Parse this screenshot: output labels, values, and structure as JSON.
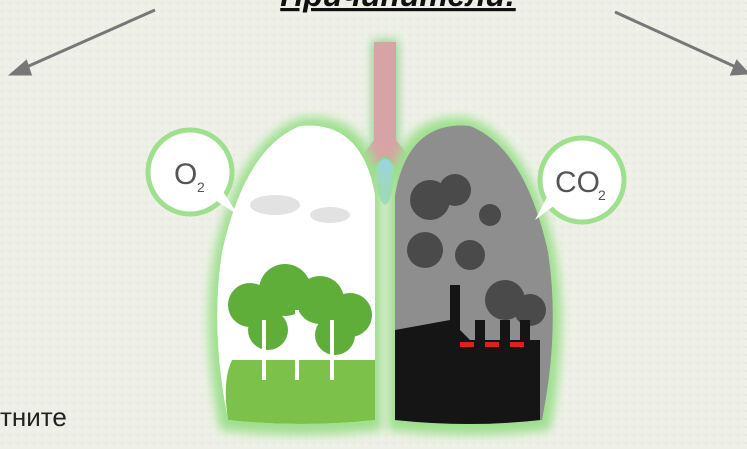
{
  "title": "Причинители:",
  "bubbles": [
    {
      "text": "O",
      "sub": "2"
    },
    {
      "text": "CO",
      "sub": "2"
    }
  ],
  "body_fragment": "тните"
}
